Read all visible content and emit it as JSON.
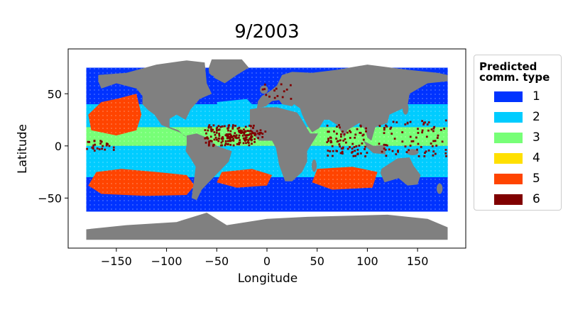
{
  "title": "9/2003",
  "xlabel": "Longitude",
  "ylabel": "Latitude",
  "x_ticks": [
    -150,
    -100,
    -50,
    0,
    50,
    100,
    150
  ],
  "x_tick_labels": [
    "−150",
    "−100",
    "−50",
    "0",
    "50",
    "100",
    "150"
  ],
  "y_ticks": [
    -50,
    0,
    50
  ],
  "y_tick_labels": [
    "−50",
    "0",
    "50"
  ],
  "xlim": [
    -198,
    198
  ],
  "ylim": [
    -98,
    93
  ],
  "land_color": "#808080",
  "legend": {
    "title_line1": "Predicted",
    "title_line2": "comm. type",
    "entries": [
      {
        "label": "1",
        "color": "#0033ff"
      },
      {
        "label": "2",
        "color": "#00ccff"
      },
      {
        "label": "3",
        "color": "#77ff77"
      },
      {
        "label": "4",
        "color": "#ffe000"
      },
      {
        "label": "5",
        "color": "#ff4400"
      },
      {
        "label": "6",
        "color": "#800000"
      }
    ]
  }
}
